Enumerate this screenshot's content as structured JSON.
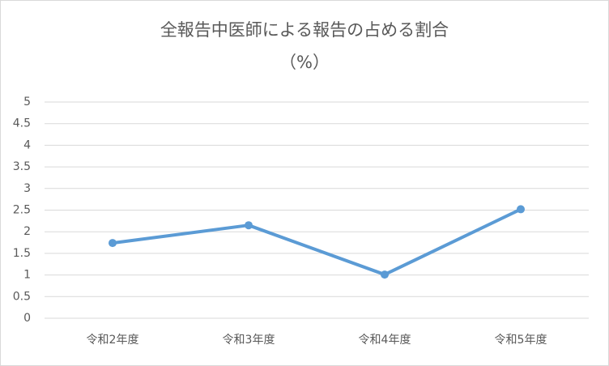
{
  "chart_data": {
    "type": "line",
    "title": "全報告中医師による報告の占める割合",
    "subtitle": "（%）",
    "categories": [
      "令和2年度",
      "令和3年度",
      "令和4年度",
      "令和5年度"
    ],
    "series": [
      {
        "name": "全報告中医師による報告の占める割合",
        "color": "#5b9bd5",
        "values": [
          1.74,
          2.15,
          1.01,
          2.52
        ]
      }
    ],
    "ylim": [
      0,
      5
    ],
    "yticks": [
      0,
      0.5,
      1,
      1.5,
      2,
      2.5,
      3,
      3.5,
      4,
      4.5,
      5
    ],
    "grid": true
  }
}
